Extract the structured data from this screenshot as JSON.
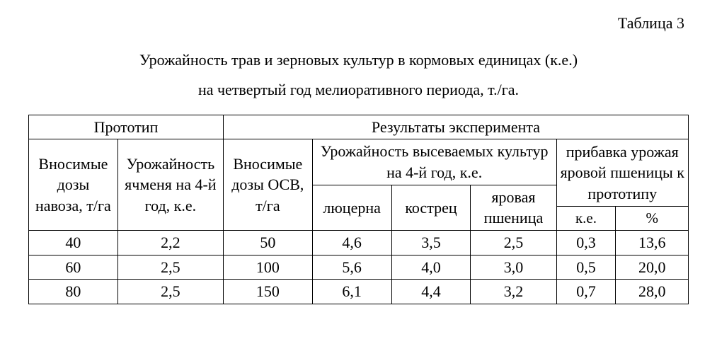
{
  "tableLabel": "Таблица 3",
  "captionLine1": "Урожайность трав и зерновых культур  в кормовых единицах (к.е.)",
  "captionLine2": "на четвертый год мелиоративного периода, т./га.",
  "headers": {
    "prototype": "Прототип",
    "results": "Результаты эксперимента",
    "manureDose": "Вносимые дозы навоза, т/га",
    "barleyYield": "Урожайность ячменя на 4-й год, к.е.",
    "osvDose": "Вносимые дозы ОСВ, т/га",
    "cropYield": "Урожайность высеваемых культур на 4-й год, к.е.",
    "wheatGain": "прибавка урожая яровой пшеницы к прототипу",
    "lucerne": "люцерна",
    "brome": "кострец",
    "springWheat": "яровая пшеница",
    "ke": "к.е.",
    "pct": "%"
  },
  "rows": [
    {
      "manure": "40",
      "barley": "2,2",
      "osv": "50",
      "lucerne": "4,6",
      "brome": "3,5",
      "wheat": "2,5",
      "gain_ke": "0,3",
      "gain_pct": "13,6"
    },
    {
      "manure": "60",
      "barley": "2,5",
      "osv": "100",
      "lucerne": "5,6",
      "brome": "4,0",
      "wheat": "3,0",
      "gain_ke": "0,5",
      "gain_pct": "20,0"
    },
    {
      "manure": "80",
      "barley": "2,5",
      "osv": "150",
      "lucerne": "6,1",
      "brome": "4,4",
      "wheat": "3,2",
      "gain_ke": "0,7",
      "gain_pct": "28,0"
    }
  ],
  "colWidths": [
    "13.5%",
    "16%",
    "13.5%",
    "12%",
    "12%",
    "13%",
    "9%",
    "11%"
  ]
}
